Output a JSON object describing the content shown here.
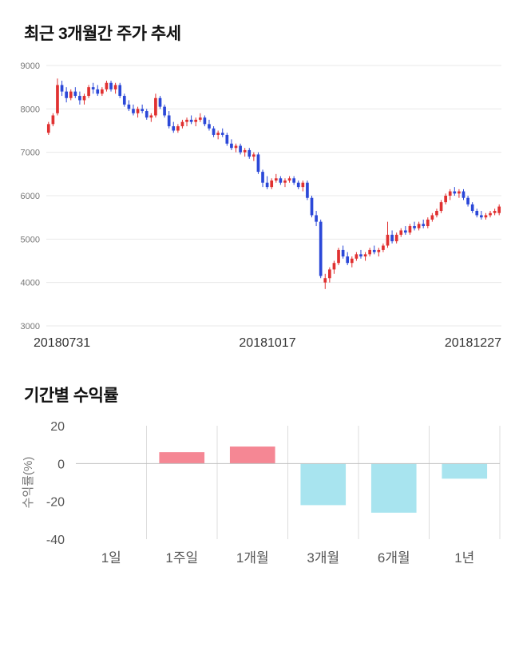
{
  "chart_data": [
    {
      "type": "candlestick",
      "title": "최근 3개월간 주가 추세",
      "ylim": [
        3000,
        9000
      ],
      "yticks": [
        9000,
        8000,
        7000,
        6000,
        5000,
        4000,
        3000
      ],
      "xticks": [
        "20180731",
        "20181017",
        "20181227"
      ],
      "up_color": "#e03131",
      "down_color": "#2b48d8",
      "grid_color": "#e8e8e8",
      "tick_color": "#777777",
      "candles": [
        [
          7450,
          7700,
          7400,
          7650
        ],
        [
          7650,
          7900,
          7600,
          7850
        ],
        [
          7900,
          8700,
          7850,
          8550
        ],
        [
          8550,
          8650,
          8300,
          8400
        ],
        [
          8400,
          8500,
          8150,
          8250
        ],
        [
          8250,
          8450,
          8200,
          8400
        ],
        [
          8400,
          8500,
          8250,
          8300
        ],
        [
          8300,
          8400,
          8100,
          8200
        ],
        [
          8200,
          8350,
          8100,
          8300
        ],
        [
          8300,
          8550,
          8250,
          8500
        ],
        [
          8500,
          8600,
          8350,
          8450
        ],
        [
          8450,
          8550,
          8300,
          8350
        ],
        [
          8350,
          8500,
          8300,
          8450
        ],
        [
          8450,
          8650,
          8400,
          8600
        ],
        [
          8600,
          8650,
          8400,
          8450
        ],
        [
          8450,
          8600,
          8350,
          8550
        ],
        [
          8550,
          8600,
          8250,
          8300
        ],
        [
          8300,
          8350,
          8050,
          8100
        ],
        [
          8100,
          8200,
          7950,
          8000
        ],
        [
          8000,
          8100,
          7850,
          7900
        ],
        [
          7900,
          8050,
          7800,
          8000
        ],
        [
          8000,
          8100,
          7900,
          7950
        ],
        [
          7950,
          8000,
          7750,
          7800
        ],
        [
          7800,
          7900,
          7700,
          7850
        ],
        [
          7850,
          8350,
          7800,
          8250
        ],
        [
          8250,
          8300,
          8000,
          8050
        ],
        [
          8050,
          8100,
          7800,
          7850
        ],
        [
          7850,
          7950,
          7550,
          7600
        ],
        [
          7600,
          7700,
          7450,
          7500
        ],
        [
          7500,
          7650,
          7450,
          7600
        ],
        [
          7600,
          7750,
          7550,
          7700
        ],
        [
          7700,
          7800,
          7600,
          7750
        ],
        [
          7750,
          7850,
          7650,
          7700
        ],
        [
          7700,
          7800,
          7600,
          7750
        ],
        [
          7750,
          7900,
          7700,
          7800
        ],
        [
          7800,
          7850,
          7600,
          7650
        ],
        [
          7650,
          7750,
          7500,
          7550
        ],
        [
          7550,
          7600,
          7350,
          7400
        ],
        [
          7400,
          7500,
          7300,
          7450
        ],
        [
          7450,
          7550,
          7350,
          7400
        ],
        [
          7400,
          7450,
          7150,
          7200
        ],
        [
          7200,
          7300,
          7050,
          7100
        ],
        [
          7100,
          7200,
          7000,
          7150
        ],
        [
          7150,
          7200,
          6950,
          7000
        ],
        [
          7000,
          7100,
          6900,
          7050
        ],
        [
          7050,
          7100,
          6850,
          6900
        ],
        [
          6900,
          7000,
          6800,
          6950
        ],
        [
          6950,
          7000,
          6500,
          6550
        ],
        [
          6550,
          6600,
          6200,
          6300
        ],
        [
          6300,
          6450,
          6150,
          6200
        ],
        [
          6200,
          6400,
          6150,
          6350
        ],
        [
          6350,
          6500,
          6300,
          6400
        ],
        [
          6400,
          6450,
          6250,
          6300
        ],
        [
          6300,
          6400,
          6200,
          6350
        ],
        [
          6350,
          6450,
          6300,
          6400
        ],
        [
          6400,
          6450,
          6250,
          6300
        ],
        [
          6300,
          6350,
          6150,
          6200
        ],
        [
          6200,
          6350,
          6100,
          6300
        ],
        [
          6300,
          6350,
          5900,
          5950
        ],
        [
          5950,
          6000,
          5500,
          5550
        ],
        [
          5550,
          5650,
          5300,
          5400
        ],
        [
          5400,
          5450,
          4100,
          4150
        ],
        [
          4000,
          4200,
          3850,
          4100
        ],
        [
          4100,
          4350,
          4000,
          4300
        ],
        [
          4300,
          4500,
          4200,
          4450
        ],
        [
          4450,
          4800,
          4400,
          4750
        ],
        [
          4750,
          4850,
          4550,
          4600
        ],
        [
          4600,
          4700,
          4400,
          4450
        ],
        [
          4450,
          4600,
          4350,
          4550
        ],
        [
          4550,
          4700,
          4500,
          4650
        ],
        [
          4650,
          4750,
          4550,
          4600
        ],
        [
          4600,
          4700,
          4500,
          4650
        ],
        [
          4650,
          4800,
          4600,
          4750
        ],
        [
          4750,
          4850,
          4650,
          4700
        ],
        [
          4700,
          4800,
          4600,
          4750
        ],
        [
          4750,
          4900,
          4700,
          4850
        ],
        [
          4850,
          5400,
          4800,
          5100
        ],
        [
          5100,
          5200,
          4900,
          4950
        ],
        [
          4950,
          5150,
          4900,
          5100
        ],
        [
          5100,
          5250,
          5050,
          5200
        ],
        [
          5200,
          5300,
          5100,
          5150
        ],
        [
          5150,
          5350,
          5100,
          5300
        ],
        [
          5300,
          5400,
          5200,
          5250
        ],
        [
          5250,
          5400,
          5200,
          5350
        ],
        [
          5350,
          5450,
          5250,
          5300
        ],
        [
          5300,
          5500,
          5250,
          5450
        ],
        [
          5450,
          5600,
          5400,
          5550
        ],
        [
          5550,
          5700,
          5500,
          5650
        ],
        [
          5650,
          5900,
          5600,
          5850
        ],
        [
          5850,
          6050,
          5800,
          6000
        ],
        [
          6000,
          6150,
          5900,
          6100
        ],
        [
          6100,
          6200,
          6000,
          6050
        ],
        [
          6050,
          6150,
          5950,
          6100
        ],
        [
          6100,
          6150,
          5900,
          5950
        ],
        [
          5950,
          6000,
          5750,
          5800
        ],
        [
          5800,
          5850,
          5600,
          5650
        ],
        [
          5650,
          5700,
          5500,
          5550
        ],
        [
          5550,
          5650,
          5450,
          5500
        ],
        [
          5500,
          5600,
          5450,
          5550
        ],
        [
          5550,
          5650,
          5500,
          5600
        ],
        [
          5600,
          5700,
          5550,
          5650
        ],
        [
          5600,
          5800,
          5550,
          5750
        ]
      ]
    },
    {
      "type": "bar",
      "title": "기간별 수익률",
      "categories": [
        "1일",
        "1주일",
        "1개월",
        "3개월",
        "6개월",
        "1년"
      ],
      "values": [
        0,
        6,
        9,
        -22,
        -26,
        -8
      ],
      "ylabel": "수익률(%)",
      "ylim": [
        -40,
        20
      ],
      "yticks": [
        20,
        0,
        -20,
        -40
      ],
      "positive_color": "#f58794",
      "negative_color": "#a8e4ef",
      "grid_color": "#dddddd",
      "zero_line_color": "#bfbfbf",
      "tick_color": "#555555",
      "label_color": "#777777"
    }
  ]
}
